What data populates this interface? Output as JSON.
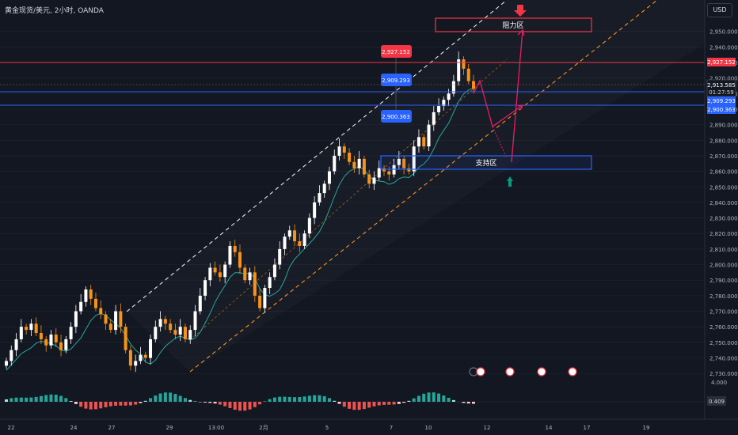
{
  "header": {
    "symbol": "黄金现货/美元, 2小时, OANDA",
    "currency": "USD"
  },
  "colors": {
    "bg": "#131722",
    "grid": "#1f2430",
    "bull": "#ffffff",
    "bear": "#f7931a",
    "resistance": "#f23645",
    "support": "#2962ff",
    "ma": "#26a69a",
    "channel_white": "#e8e8e8",
    "channel_orange": "#f7931a",
    "forecast": "#e91e63",
    "arrow_down": "#f23645",
    "arrow_up": "#089981"
  },
  "zones": {
    "resistance_label": "阻力区",
    "support_label": "支持区"
  },
  "price_tags": {
    "resistance_level": "2,927.152",
    "level_mid": "2,909.293",
    "level_low": "2,900.363",
    "current_price": "2,913.585",
    "countdown": "01:27:59"
  },
  "macd": {
    "axis_top": "4.000",
    "value": "0.409"
  },
  "chart_data": {
    "type": "candlestick",
    "title": "",
    "y_axis": {
      "min": 2725,
      "max": 2960,
      "ticks": [
        2730,
        2740,
        2750,
        2760,
        2770,
        2780,
        2790,
        2800,
        2810,
        2820,
        2830,
        2840,
        2850,
        2860,
        2870,
        2880,
        2890,
        2900,
        2910,
        2920,
        2930,
        2940,
        2950
      ],
      "tick_labels": [
        "2,730.000",
        "2,740.000",
        "2,750.000",
        "2,760.000",
        "2,770.000",
        "2,780.000",
        "2,790.000",
        "2,800.000",
        "2,810.000",
        "2,820.000",
        "2,830.000",
        "2,840.000",
        "2,850.000",
        "2,860.000",
        "2,870.000",
        "2,880.000",
        "2,890.000",
        "2,900.000",
        "2,910.000",
        "2,920.000",
        "2,930.000",
        "2,940.000",
        "2,950.000"
      ]
    },
    "x_axis_labels": [
      "22",
      "24",
      "27",
      "29",
      "13:00",
      "2月",
      "5",
      "7",
      "10",
      "12",
      "14",
      "17",
      "19"
    ],
    "horizontal_levels": [
      {
        "price": 2927.152,
        "color": "resistance"
      },
      {
        "price": 2909.293,
        "color": "support"
      },
      {
        "price": 2900.363,
        "color": "support"
      },
      {
        "price": 2913.585,
        "color": "current"
      }
    ],
    "zones": [
      {
        "name": "resistance",
        "price_low": 2946,
        "price_high": 2955
      },
      {
        "name": "support",
        "price_low": 2860,
        "price_high": 2869
      }
    ],
    "forecast_path": [
      2913,
      2905,
      2888,
      2900,
      2908
    ],
    "forecast_alt": [
      2888,
      2865,
      2932,
      2953
    ],
    "closes": [
      2738,
      2745,
      2752,
      2760,
      2758,
      2762,
      2756,
      2752,
      2748,
      2755,
      2750,
      2745,
      2752,
      2760,
      2770,
      2776,
      2784,
      2778,
      2772,
      2768,
      2762,
      2758,
      2770,
      2760,
      2745,
      2735,
      2738,
      2742,
      2740,
      2752,
      2760,
      2765,
      2762,
      2758,
      2755,
      2760,
      2752,
      2758,
      2770,
      2780,
      2790,
      2798,
      2795,
      2792,
      2800,
      2812,
      2808,
      2798,
      2790,
      2795,
      2780,
      2772,
      2785,
      2792,
      2800,
      2810,
      2818,
      2822,
      2815,
      2812,
      2820,
      2830,
      2840,
      2846,
      2852,
      2860,
      2870,
      2876,
      2872,
      2866,
      2862,
      2868,
      2858,
      2852,
      2856,
      2862,
      2860,
      2858,
      2864,
      2868,
      2862,
      2860,
      2876,
      2882,
      2876,
      2890,
      2898,
      2902,
      2906,
      2910,
      2918,
      2932,
      2926,
      2918,
      2913
    ]
  }
}
